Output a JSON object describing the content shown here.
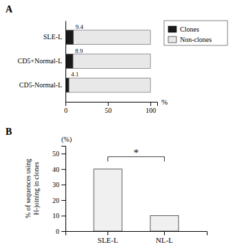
{
  "chart_data": [
    {
      "type": "bar",
      "title": "A",
      "orientation": "horizontal",
      "stacked": true,
      "categories": [
        "SLE-L",
        "CD5+Normal-L",
        "CD5-Normal-L"
      ],
      "series": [
        {
          "name": "Clones",
          "color": "#1a1a1a",
          "values": [
            9.4,
            8.9,
            4.1
          ],
          "data_labels": true
        },
        {
          "name": "Non-clones",
          "color": "#e8e8e8",
          "values": [
            90.6,
            91.1,
            95.9
          ]
        }
      ],
      "xlabel": "%",
      "xlim": [
        0,
        108
      ],
      "xticks": [
        0,
        50,
        100
      ],
      "legend": "right"
    },
    {
      "type": "bar",
      "title": "B",
      "categories": [
        "SLE-L",
        "NL-L"
      ],
      "values": [
        40,
        10
      ],
      "color": "#f0f0f0",
      "ylabel": "% of sequences using\nH-joining in clones",
      "ylim": [
        0,
        55
      ],
      "yticks": [
        0,
        10,
        20,
        30,
        40,
        50
      ],
      "annotations": [
        {
          "text": "(%)"
        },
        {
          "text": "*",
          "y": 48
        }
      ]
    }
  ]
}
